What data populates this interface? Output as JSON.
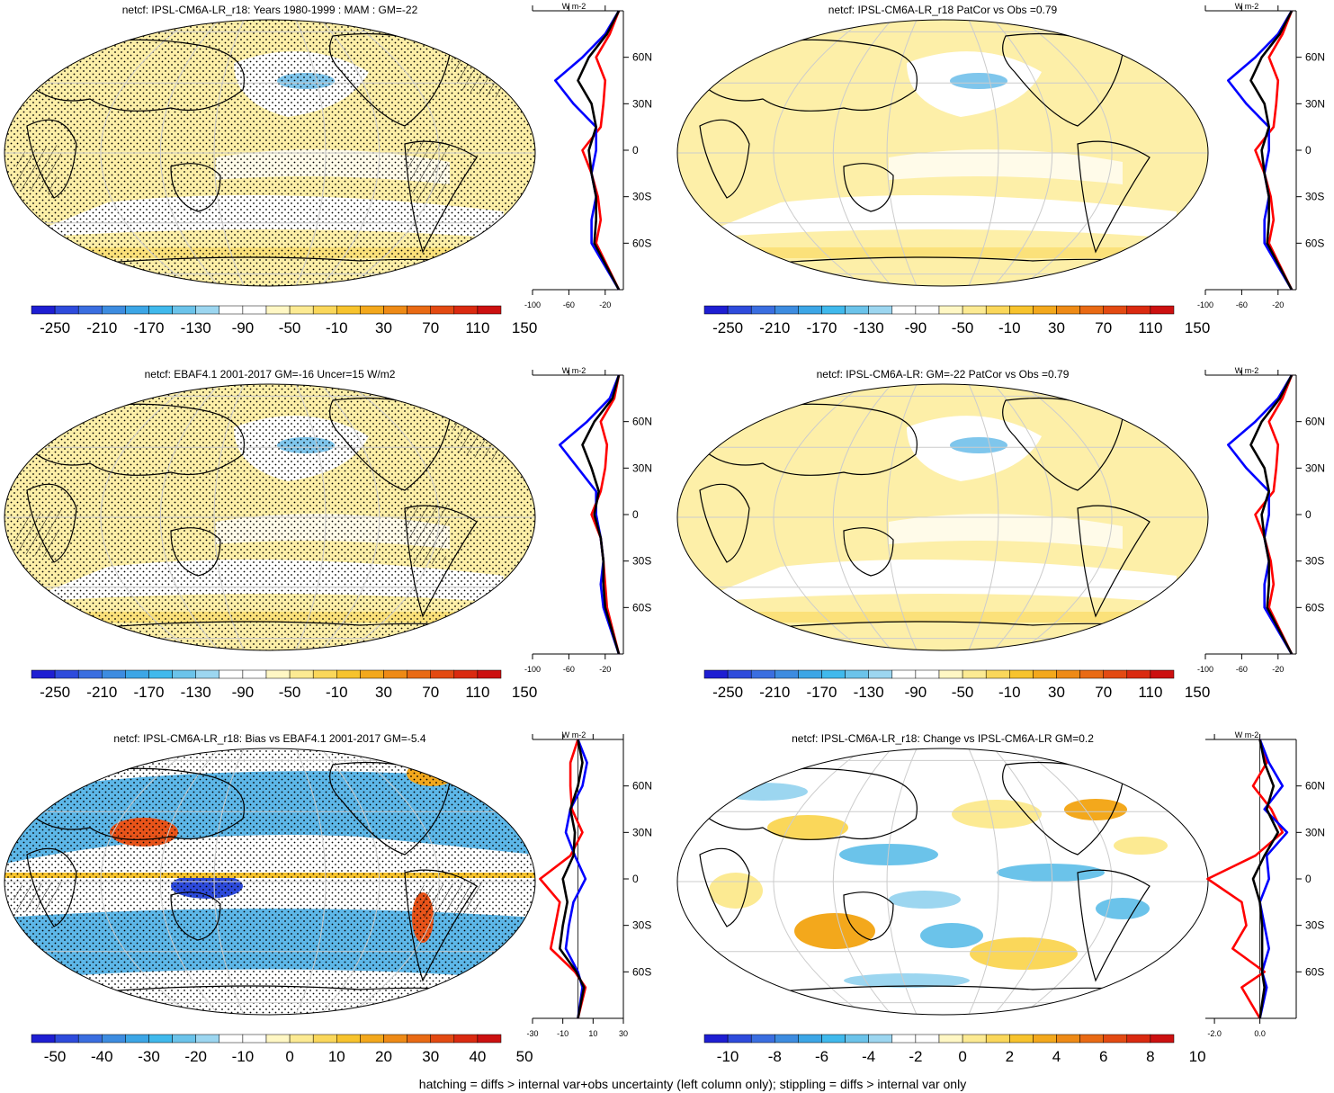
{
  "footer": "hatching = diffs > internal var+obs uncertainty (left column only); stippling = diffs > internal var only",
  "palette_blue_to_red": [
    "#1E1ED2",
    "#2E4BDC",
    "#3A6EE0",
    "#3D8CE0",
    "#3CA6E6",
    "#40B9EC",
    "#6BC3EA",
    "#9CD6F0",
    "#FFFFFF",
    "#FFFFFF",
    "#FFF7C4",
    "#FCEA92",
    "#FAD75A",
    "#F7C32D",
    "#F3A81C",
    "#EE8A16",
    "#E96A14",
    "#E34A12",
    "#DA2A10",
    "#CC1010"
  ],
  "colors": {
    "model_line": "#FF0000",
    "obs_line": "#0000FF",
    "diff_line": "#000000",
    "map_fill": "#FDEFA8",
    "hatch": "#000000"
  },
  "chart_data": [
    {
      "type": "heatmap",
      "title": "netcf: IPSL-CM6A-LR_r18: Years 1980-1999 : MAM : GM=-22",
      "colorbar": {
        "labels": [
          "-250",
          "-210",
          "-170",
          "-130",
          "-90",
          "-50",
          "-10",
          "30",
          "70",
          "110",
          "150"
        ]
      },
      "zonal_mean": {
        "unit": "W m-2",
        "xticks": [
          "-100",
          "-60",
          "-20"
        ],
        "xlim": [
          -100,
          0
        ],
        "lat_labels": [
          "60N",
          "30N",
          "0",
          "30S",
          "60S"
        ],
        "lat": [
          -90,
          -60,
          -45,
          -30,
          -15,
          0,
          15,
          30,
          45,
          60,
          75,
          90
        ],
        "series": [
          {
            "color": "red",
            "values": [
              -5,
              -30,
              -25,
              -28,
              -35,
              -45,
              -25,
              -22,
              -20,
              -30,
              -15,
              -5
            ]
          },
          {
            "color": "blue",
            "values": [
              -5,
              -35,
              -35,
              -30,
              -35,
              -30,
              -30,
              -55,
              -75,
              -45,
              -20,
              -5
            ]
          },
          {
            "color": "black",
            "values": [
              -5,
              -32,
              -30,
              -30,
              -35,
              -38,
              -30,
              -35,
              -50,
              -38,
              -18,
              -5
            ]
          }
        ]
      }
    },
    {
      "type": "heatmap",
      "title": "netcf: IPSL-CM6A-LR_r18 PatCor vs Obs =0.79",
      "colorbar": {
        "labels": [
          "-250",
          "-210",
          "-170",
          "-130",
          "-90",
          "-50",
          "-10",
          "30",
          "70",
          "110",
          "150"
        ]
      },
      "zonal_mean": {
        "unit": "W m-2",
        "xticks": [
          "-100",
          "-60",
          "-20"
        ],
        "xlim": [
          -100,
          0
        ],
        "lat_labels": [
          "60N",
          "30N",
          "0",
          "30S",
          "60S"
        ],
        "lat": [
          -90,
          -60,
          -45,
          -30,
          -15,
          0,
          15,
          30,
          45,
          60,
          75,
          90
        ],
        "series": [
          {
            "color": "red",
            "values": [
              -5,
              -30,
              -25,
              -28,
              -35,
              -45,
              -25,
              -22,
              -20,
              -30,
              -15,
              -5
            ]
          },
          {
            "color": "blue",
            "values": [
              -5,
              -35,
              -35,
              -30,
              -35,
              -30,
              -30,
              -55,
              -75,
              -45,
              -20,
              -5
            ]
          },
          {
            "color": "black",
            "values": [
              -5,
              -32,
              -30,
              -30,
              -35,
              -38,
              -30,
              -35,
              -50,
              -38,
              -18,
              -5
            ]
          }
        ]
      }
    },
    {
      "type": "heatmap",
      "title": "netcf: EBAF4.1 2001-2017 GM=-16 Uncer=15 W/m2",
      "colorbar": {
        "labels": [
          "-250",
          "-210",
          "-170",
          "-130",
          "-90",
          "-50",
          "-10",
          "30",
          "70",
          "110",
          "150"
        ]
      },
      "zonal_mean": {
        "unit": "W m-2",
        "xticks": [
          "-100",
          "-60",
          "-20"
        ],
        "xlim": [
          -100,
          0
        ],
        "lat_labels": [
          "60N",
          "30N",
          "0",
          "30S",
          "60S"
        ],
        "lat": [
          -90,
          -60,
          -45,
          -30,
          -15,
          0,
          15,
          30,
          45,
          60,
          75,
          90
        ],
        "series": [
          {
            "color": "red",
            "values": [
              -5,
              -18,
              -20,
              -22,
              -25,
              -35,
              -25,
              -20,
              -18,
              -25,
              -10,
              -5
            ]
          },
          {
            "color": "blue",
            "values": [
              -5,
              -22,
              -25,
              -22,
              -25,
              -30,
              -30,
              -50,
              -70,
              -40,
              -15,
              -5
            ]
          },
          {
            "color": "black",
            "values": [
              -5,
              -20,
              -22,
              -22,
              -25,
              -32,
              -27,
              -35,
              -45,
              -32,
              -12,
              -5
            ]
          }
        ]
      }
    },
    {
      "type": "heatmap",
      "title": "netcf: IPSL-CM6A-LR: GM=-22 PatCor vs Obs =0.79",
      "colorbar": {
        "labels": [
          "-250",
          "-210",
          "-170",
          "-130",
          "-90",
          "-50",
          "-10",
          "30",
          "70",
          "110",
          "150"
        ]
      },
      "zonal_mean": {
        "unit": "W m-2",
        "xticks": [
          "-100",
          "-60",
          "-20"
        ],
        "xlim": [
          -100,
          0
        ],
        "lat_labels": [
          "60N",
          "30N",
          "0",
          "30S",
          "60S"
        ],
        "lat": [
          -90,
          -60,
          -45,
          -30,
          -15,
          0,
          15,
          30,
          45,
          60,
          75,
          90
        ],
        "series": [
          {
            "color": "red",
            "values": [
              -5,
              -30,
              -25,
              -28,
              -35,
              -45,
              -25,
              -22,
              -20,
              -30,
              -15,
              -5
            ]
          },
          {
            "color": "blue",
            "values": [
              -5,
              -35,
              -35,
              -30,
              -35,
              -30,
              -30,
              -55,
              -75,
              -45,
              -20,
              -5
            ]
          },
          {
            "color": "black",
            "values": [
              -5,
              -32,
              -30,
              -30,
              -35,
              -38,
              -30,
              -35,
              -50,
              -38,
              -18,
              -5
            ]
          }
        ]
      }
    },
    {
      "type": "heatmap",
      "title": "netcf: IPSL-CM6A-LR_r18: Bias vs EBAF4.1 2001-2017 GM=-5.4",
      "colorbar": {
        "labels": [
          "-50",
          "-40",
          "-30",
          "-20",
          "-10",
          "0",
          "10",
          "20",
          "30",
          "40",
          "50"
        ]
      },
      "zonal_mean": {
        "unit": "W m-2",
        "xticks": [
          "-30",
          "-10",
          "10",
          "30"
        ],
        "xlim": [
          -30,
          30
        ],
        "lat_labels": [
          "60N",
          "30N",
          "0",
          "30S",
          "60S"
        ],
        "lat": [
          -90,
          -70,
          -60,
          -45,
          -30,
          -15,
          0,
          15,
          30,
          45,
          60,
          75,
          90
        ],
        "series": [
          {
            "color": "red",
            "values": [
              0,
              5,
              -2,
              -18,
              -15,
              -12,
              -25,
              -5,
              3,
              -4,
              -5,
              -5,
              0
            ]
          },
          {
            "color": "blue",
            "values": [
              0,
              3,
              0,
              -8,
              -6,
              -3,
              5,
              -2,
              -8,
              -5,
              3,
              6,
              0
            ]
          },
          {
            "color": "black",
            "values": [
              0,
              4,
              -1,
              -12,
              -10,
              -7,
              -10,
              -3,
              -2,
              -5,
              0,
              3,
              0
            ]
          }
        ]
      }
    },
    {
      "type": "heatmap",
      "title": "netcf: IPSL-CM6A-LR_r18: Change vs IPSL-CM6A-LR GM=0.2",
      "colorbar": {
        "labels": [
          "-10",
          "-8",
          "-6",
          "-4",
          "-2",
          "0",
          "2",
          "4",
          "6",
          "8",
          "10"
        ]
      },
      "zonal_mean": {
        "unit": "W m-2",
        "xticks": [
          "-2.0",
          "0.0"
        ],
        "xlim": [
          -2.4,
          1.6
        ],
        "lat_labels": [
          "60N",
          "30N",
          "0",
          "30S",
          "60S"
        ],
        "lat": [
          -90,
          -70,
          -60,
          -45,
          -30,
          -15,
          0,
          15,
          30,
          45,
          60,
          75,
          90
        ],
        "series": [
          {
            "color": "red",
            "values": [
              0,
              -0.8,
              0.2,
              -1.2,
              -0.6,
              -0.8,
              -2.3,
              -0.2,
              1.0,
              0.5,
              -0.3,
              0.3,
              0
            ]
          },
          {
            "color": "blue",
            "values": [
              0,
              0.3,
              0.1,
              0.4,
              0.2,
              0.0,
              0.4,
              0.3,
              1.2,
              0.2,
              1.0,
              0.4,
              0
            ]
          },
          {
            "color": "black",
            "values": [
              0,
              0.2,
              0.1,
              0.1,
              0.1,
              0.0,
              -0.3,
              0.2,
              0.8,
              0.3,
              0.6,
              0.2,
              0
            ]
          }
        ]
      }
    }
  ]
}
